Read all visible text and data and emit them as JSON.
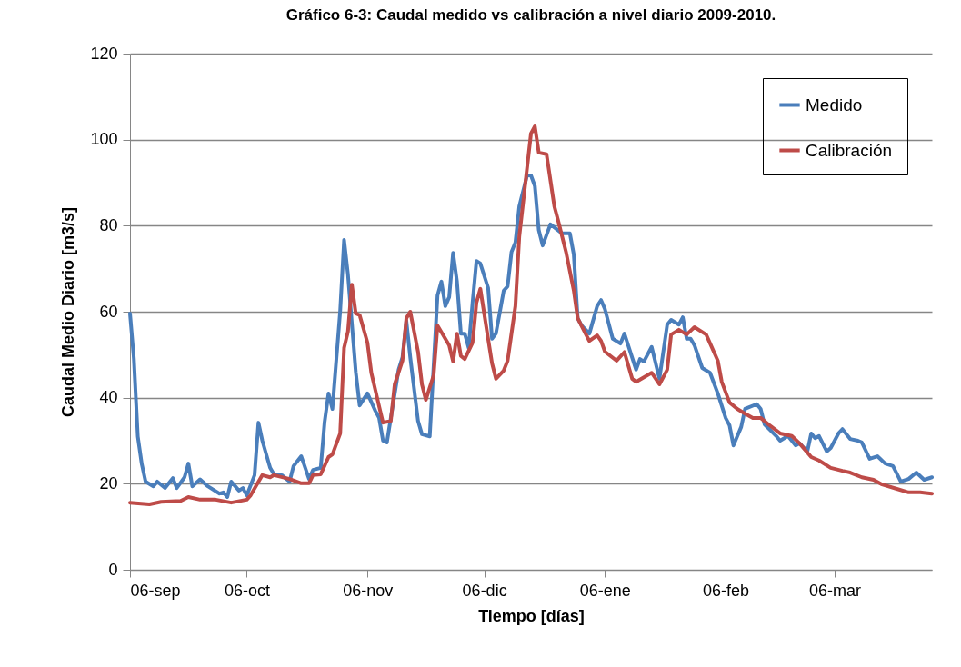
{
  "chart_data": {
    "type": "line",
    "title": "Gráfico 6-3: Caudal medido vs calibración a nivel diario 2009-2010.",
    "xlabel": "Tiempo [días]",
    "ylabel": "Caudal Medio Diario [m3/s]",
    "xlim": [
      "2009-09-06",
      "2010-03-31"
    ],
    "xticks": [
      {
        "value": "2009-09-06",
        "label": "06-sep"
      },
      {
        "value": "2009-10-06",
        "label": "06-oct"
      },
      {
        "value": "2009-11-06",
        "label": "06-nov"
      },
      {
        "value": "2009-12-06",
        "label": "06-dic"
      },
      {
        "value": "2010-01-06",
        "label": "06-ene"
      },
      {
        "value": "2010-02-06",
        "label": "06-feb"
      },
      {
        "value": "2010-03-06",
        "label": "06-mar"
      }
    ],
    "ylim": [
      0,
      120
    ],
    "yticks": [
      0,
      20,
      40,
      60,
      80,
      100,
      120
    ],
    "grid": "y",
    "legend": "top right",
    "line_style": "solid",
    "series": [
      {
        "name": "Medido",
        "color": "#4a7ebb",
        "x": [
          "2009-09-06",
          "2009-09-07",
          "2009-09-08",
          "2009-09-09",
          "2009-09-10",
          "2009-09-12",
          "2009-09-13",
          "2009-09-15",
          "2009-09-17",
          "2009-09-18",
          "2009-09-20",
          "2009-09-21",
          "2009-09-22",
          "2009-09-24",
          "2009-09-26",
          "2009-09-29",
          "2009-09-30",
          "2009-10-01",
          "2009-10-02",
          "2009-10-04",
          "2009-10-05",
          "2009-10-06",
          "2009-10-08",
          "2009-10-09",
          "2009-10-10",
          "2009-10-12",
          "2009-10-13",
          "2009-10-15",
          "2009-10-17",
          "2009-10-18",
          "2009-10-20",
          "2009-10-22",
          "2009-10-23",
          "2009-10-25",
          "2009-10-26",
          "2009-10-27",
          "2009-10-28",
          "2009-10-30",
          "2009-10-31",
          "2009-11-01",
          "2009-11-03",
          "2009-11-04",
          "2009-11-06",
          "2009-11-08",
          "2009-11-09",
          "2009-11-10",
          "2009-11-11",
          "2009-11-14",
          "2009-11-15",
          "2009-11-16",
          "2009-11-17",
          "2009-11-19",
          "2009-11-20",
          "2009-11-22",
          "2009-11-24",
          "2009-11-25",
          "2009-11-26",
          "2009-11-27",
          "2009-11-28",
          "2009-11-29",
          "2009-11-30",
          "2009-12-01",
          "2009-12-02",
          "2009-12-03",
          "2009-12-04",
          "2009-12-05",
          "2009-12-07",
          "2009-12-08",
          "2009-12-09",
          "2009-12-11",
          "2009-12-12",
          "2009-12-13",
          "2009-12-14",
          "2009-12-15",
          "2009-12-17",
          "2009-12-18",
          "2009-12-19",
          "2009-12-20",
          "2009-12-21",
          "2009-12-23",
          "2009-12-26",
          "2009-12-28",
          "2009-12-29",
          "2009-12-30",
          "2009-12-31",
          "2010-01-02",
          "2010-01-04",
          "2010-01-05",
          "2010-01-06",
          "2010-01-08",
          "2010-01-10",
          "2010-01-11",
          "2010-01-14",
          "2010-01-15",
          "2010-01-16",
          "2010-01-18",
          "2010-01-20",
          "2010-01-22",
          "2010-01-23",
          "2010-01-25",
          "2010-01-26",
          "2010-01-27",
          "2010-01-28",
          "2010-01-29",
          "2010-01-31",
          "2010-02-02",
          "2010-02-04",
          "2010-02-06",
          "2010-02-07",
          "2010-02-08",
          "2010-02-10",
          "2010-02-11",
          "2010-02-14",
          "2010-02-15",
          "2010-02-16",
          "2010-02-19",
          "2010-02-20",
          "2010-02-22",
          "2010-02-24",
          "2010-02-25",
          "2010-02-27",
          "2010-02-28",
          "2010-03-01",
          "2010-03-02",
          "2010-03-04",
          "2010-03-05",
          "2010-03-07",
          "2010-03-08",
          "2010-03-10",
          "2010-03-12",
          "2010-03-13",
          "2010-03-15",
          "2010-03-17",
          "2010-03-19",
          "2010-03-21",
          "2010-03-23",
          "2010-03-25",
          "2010-03-27",
          "2010-03-29",
          "2010-03-31"
        ],
        "values": [
          59.6,
          49,
          31,
          24.7,
          20.5,
          19.4,
          20.5,
          19,
          21.3,
          19,
          21.5,
          24.7,
          19.4,
          21,
          19.4,
          17.7,
          18,
          16.9,
          20.5,
          18.4,
          19,
          17.3,
          22,
          34.2,
          30,
          23.7,
          22.2,
          22,
          20.5,
          24.1,
          26.4,
          21.1,
          23.2,
          23.7,
          34.4,
          41,
          37.4,
          60.2,
          76.7,
          68.6,
          46,
          38.2,
          41,
          37,
          35.3,
          30,
          29.6,
          46.5,
          49.4,
          57.9,
          49.4,
          34.6,
          31.5,
          31,
          63.8,
          67,
          61.3,
          63.4,
          73.7,
          67,
          54.9,
          54.9,
          51.6,
          62.1,
          71.8,
          71.2,
          65.5,
          53.7,
          54.9,
          64.9,
          65.9,
          73.9,
          76.1,
          84.5,
          91.7,
          91.7,
          89.2,
          79,
          75.4,
          80.3,
          78.2,
          78.2,
          73.3,
          58.5,
          56.8,
          54.9,
          61.3,
          62.7,
          60.6,
          53.7,
          52.6,
          54.9,
          46.5,
          49,
          48.4,
          51.8,
          44.4,
          57,
          58.1,
          57,
          58.7,
          53.7,
          53.7,
          52.2,
          46.9,
          45.8,
          41,
          35.3,
          33.6,
          28.9,
          33.2,
          37.4,
          38.5,
          37.4,
          33.8,
          31.1,
          30,
          31.1,
          28.9,
          29.4,
          27.5,
          31.7,
          30.6,
          31.1,
          27.5,
          28.3,
          31.7,
          32.7,
          30.4,
          30,
          29.6,
          25.8,
          26.4,
          24.7,
          24.1,
          20.5,
          21.1,
          22.6,
          20.9,
          21.5
        ]
      },
      {
        "name": "Calibración",
        "color": "#be4b48",
        "x": [
          "2009-09-06",
          "2009-09-11",
          "2009-09-14",
          "2009-09-19",
          "2009-09-21",
          "2009-09-24",
          "2009-09-28",
          "2009-10-02",
          "2009-10-06",
          "2009-10-07",
          "2009-10-10",
          "2009-10-12",
          "2009-10-13",
          "2009-10-17",
          "2009-10-20",
          "2009-10-22",
          "2009-10-23",
          "2009-10-25",
          "2009-10-27",
          "2009-10-28",
          "2009-10-30",
          "2009-10-31",
          "2009-11-01",
          "2009-11-02",
          "2009-11-03",
          "2009-11-04",
          "2009-11-06",
          "2009-11-07",
          "2009-11-09",
          "2009-11-10",
          "2009-11-12",
          "2009-11-13",
          "2009-11-15",
          "2009-11-16",
          "2009-11-17",
          "2009-11-19",
          "2009-11-20",
          "2009-11-21",
          "2009-11-23",
          "2009-11-24",
          "2009-11-26",
          "2009-11-27",
          "2009-11-28",
          "2009-11-29",
          "2009-11-30",
          "2009-12-01",
          "2009-12-03",
          "2009-12-04",
          "2009-12-05",
          "2009-12-07",
          "2009-12-08",
          "2009-12-09",
          "2009-12-11",
          "2009-12-12",
          "2009-12-14",
          "2009-12-15",
          "2009-12-18",
          "2009-12-19",
          "2009-12-20",
          "2009-12-22",
          "2009-12-24",
          "2009-12-25",
          "2009-12-27",
          "2009-12-29",
          "2009-12-30",
          "2010-01-01",
          "2010-01-02",
          "2010-01-04",
          "2010-01-05",
          "2010-01-06",
          "2010-01-09",
          "2010-01-11",
          "2010-01-13",
          "2010-01-14",
          "2010-01-18",
          "2010-01-20",
          "2010-01-22",
          "2010-01-23",
          "2010-01-25",
          "2010-01-27",
          "2010-01-29",
          "2010-02-01",
          "2010-02-04",
          "2010-02-05",
          "2010-02-07",
          "2010-02-09",
          "2010-02-11",
          "2010-02-13",
          "2010-02-15",
          "2010-02-17",
          "2010-02-20",
          "2010-02-23",
          "2010-02-25",
          "2010-02-28",
          "2010-03-02",
          "2010-03-05",
          "2010-03-08",
          "2010-03-10",
          "2010-03-13",
          "2010-03-16",
          "2010-03-18",
          "2010-03-22",
          "2010-03-25",
          "2010-03-28",
          "2010-03-31"
        ],
        "values": [
          15.6,
          15.2,
          15.8,
          16,
          16.9,
          16.3,
          16.3,
          15.6,
          16.3,
          17.3,
          22,
          21.5,
          22,
          21.1,
          20.1,
          20.1,
          22,
          22.2,
          26.2,
          26.8,
          31.7,
          51.6,
          55.4,
          66.3,
          59.6,
          59.2,
          52.8,
          45.8,
          38,
          34.2,
          34.6,
          43.1,
          48.6,
          58.5,
          60,
          50.7,
          43.1,
          39.5,
          45.2,
          56.8,
          53.7,
          52.2,
          48.4,
          54.9,
          49.7,
          49,
          52.8,
          62.1,
          65.3,
          53.7,
          48,
          44.4,
          46.3,
          48.6,
          61.3,
          77.5,
          101.4,
          103.1,
          97,
          96.6,
          84.5,
          81.1,
          73.9,
          64.9,
          58.5,
          54.9,
          53.2,
          54.5,
          53.2,
          50.7,
          48.6,
          50.6,
          44.4,
          43.7,
          45.8,
          43.1,
          46.5,
          54.7,
          55.8,
          54.7,
          56.4,
          54.7,
          48.6,
          43.7,
          38.9,
          37.4,
          36.3,
          35.3,
          35.3,
          33.8,
          31.7,
          31.1,
          29.4,
          26.2,
          25.4,
          23.7,
          23,
          22.6,
          21.5,
          20.9,
          19.9,
          18.8,
          18,
          18,
          17.7
        ]
      }
    ]
  }
}
